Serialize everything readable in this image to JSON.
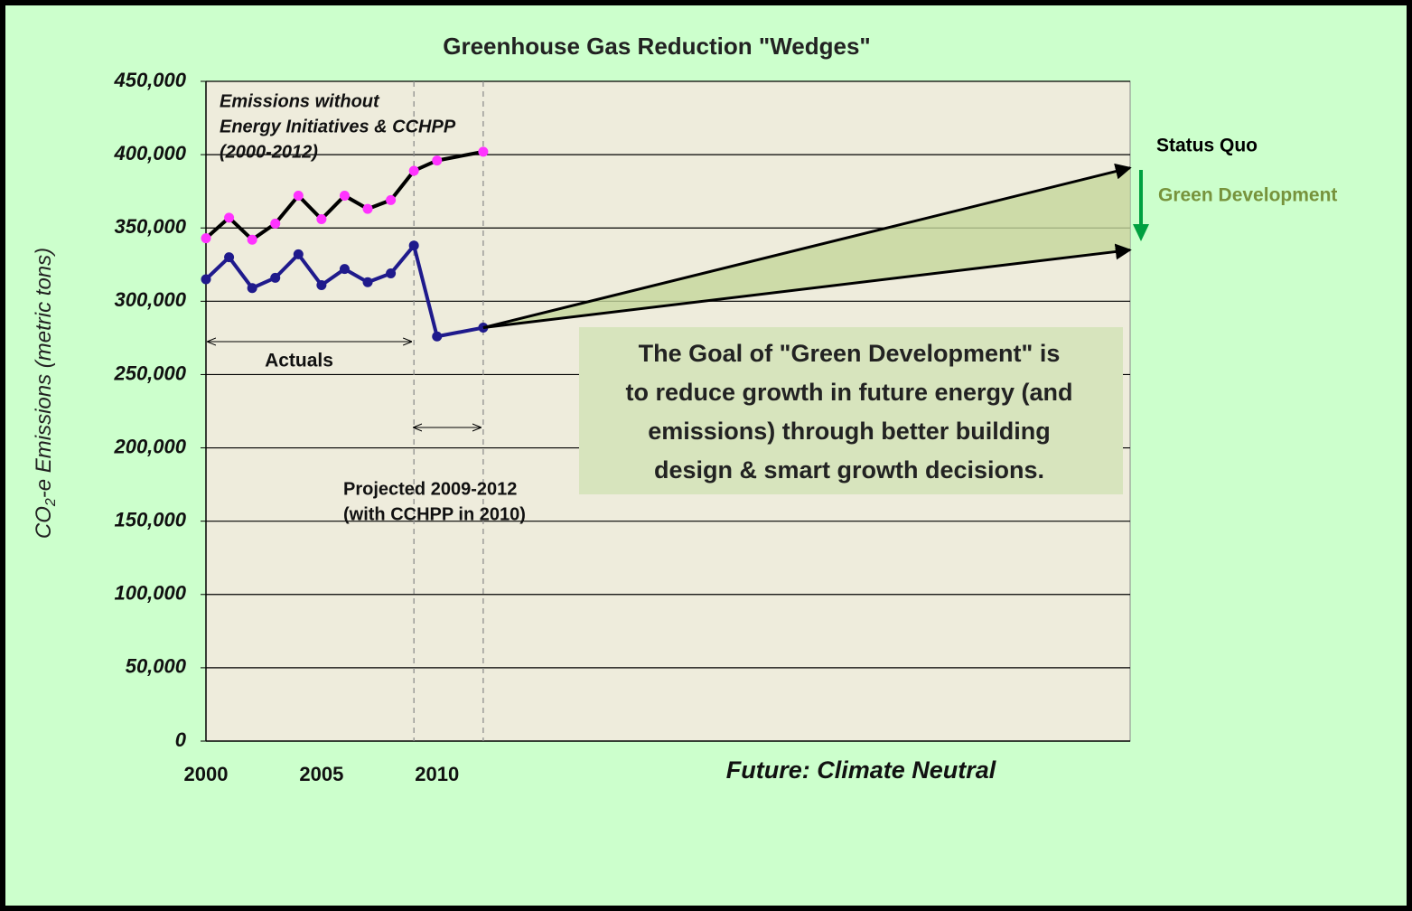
{
  "chart_data": {
    "type": "line",
    "title": "Greenhouse Gas Reduction \"Wedges\"",
    "ylabel": [
      "CO",
      "2",
      "-e Emissions (metric tons)"
    ],
    "xlim": [
      2000,
      2040
    ],
    "xticks": [
      2000,
      2005,
      2010
    ],
    "ylim": [
      0,
      450000
    ],
    "yticks": [
      0,
      {
        "value": 50000,
        "label": "50,000"
      },
      {
        "value": 100000,
        "label": "100,000"
      },
      {
        "value": 150000,
        "label": "150,000"
      },
      {
        "value": 200000,
        "label": "200,000"
      },
      {
        "value": 250000,
        "label": "250,000"
      },
      {
        "value": 300000,
        "label": "300,000"
      },
      {
        "value": 350000,
        "label": "350,000"
      },
      {
        "value": 400000,
        "label": "400,000"
      },
      {
        "value": 450000,
        "label": "450,000"
      }
    ],
    "grid": true,
    "vlines": [
      2009,
      2012
    ],
    "series": [
      {
        "color": "#000000",
        "marker_color": "#ff33ff",
        "x": [
          2000,
          2001,
          2002,
          2003,
          2004,
          2005,
          2006,
          2007,
          2008,
          2009,
          2010,
          2012
        ],
        "values": [
          343000,
          357000,
          342000,
          353000,
          372000,
          356000,
          372000,
          363000,
          369000,
          389000,
          396000,
          402000
        ]
      },
      {
        "color": "#1f1a8c",
        "marker_color": "#1f1a8c",
        "x": [
          2000,
          2001,
          2002,
          2003,
          2004,
          2005,
          2006,
          2007,
          2008,
          2009,
          2010,
          2012
        ],
        "values": [
          315000,
          330000,
          309000,
          316000,
          332000,
          311000,
          322000,
          313000,
          319000,
          338000,
          276000,
          282000
        ]
      },
      {
        "name": "Status Quo",
        "color": "#000000",
        "x": [
          2012,
          2040
        ],
        "values": [
          282000,
          391000
        ]
      },
      {
        "name": "Green Development",
        "color": "#77933c",
        "x": [
          2012,
          2040
        ],
        "values": [
          282000,
          335000
        ]
      }
    ],
    "annotations": {
      "emissions": [
        "Emissions without",
        "Energy Initiatives  & CCHPP",
        "(2000-2012)"
      ],
      "actuals": "Actuals",
      "projected": [
        "Projected 2009-2012",
        " (with CCHPP in 2010)"
      ],
      "goal": [
        "The Goal of \"Green Development\" is",
        "to reduce growth in future energy (and",
        "emissions) through better building",
        "design & smart growth decisions."
      ],
      "future": "Future: Climate  Neutral"
    }
  }
}
